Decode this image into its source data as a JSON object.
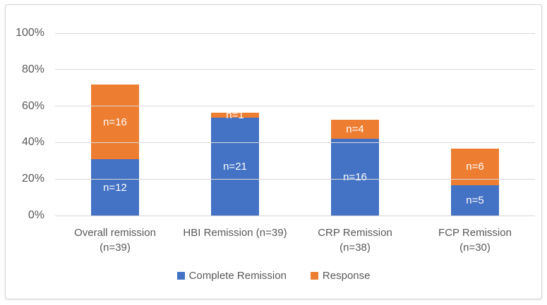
{
  "chart_data": {
    "type": "bar",
    "subtype": "stacked",
    "title": "",
    "y_axis": {
      "ticks": [
        "100%",
        "80%",
        "60%",
        "40%",
        "20%",
        "0%"
      ],
      "min": 0,
      "max": 100,
      "grid": true
    },
    "categories": [
      {
        "lines": [
          "Overall remission",
          "(n=39)"
        ],
        "total_n": 39
      },
      {
        "lines": [
          "HBI Remission (n=39)"
        ],
        "total_n": 39
      },
      {
        "lines": [
          "CRP Remission",
          "(n=38)"
        ],
        "total_n": 38
      },
      {
        "lines": [
          "FCP Remission",
          "(n=30)"
        ],
        "total_n": 30
      }
    ],
    "series": [
      {
        "name": "Complete Remission",
        "color": "#4472C4",
        "counts": [
          12,
          21,
          16,
          5
        ],
        "percents": [
          30.77,
          53.85,
          42.11,
          16.67
        ],
        "labels": [
          "n=12",
          "n=21",
          "n=16",
          "n=5"
        ]
      },
      {
        "name": "Response",
        "color": "#ED7D31",
        "counts": [
          16,
          1,
          4,
          6
        ],
        "percents": [
          41.03,
          2.56,
          10.53,
          20.0
        ],
        "labels": [
          "n=16",
          "n=1",
          "n=4",
          "n=6"
        ]
      }
    ],
    "legend": [
      {
        "label": "Complete Remission",
        "color": "#4472C4"
      },
      {
        "label": "Response",
        "color": "#ED7D31"
      }
    ],
    "legend_position": "bottom"
  },
  "colors": {
    "text": "#595959",
    "grid": "#d9d9d9",
    "card_border": "#d4d4d4",
    "background": "#ffffff",
    "bar_label": "#ffffff"
  }
}
